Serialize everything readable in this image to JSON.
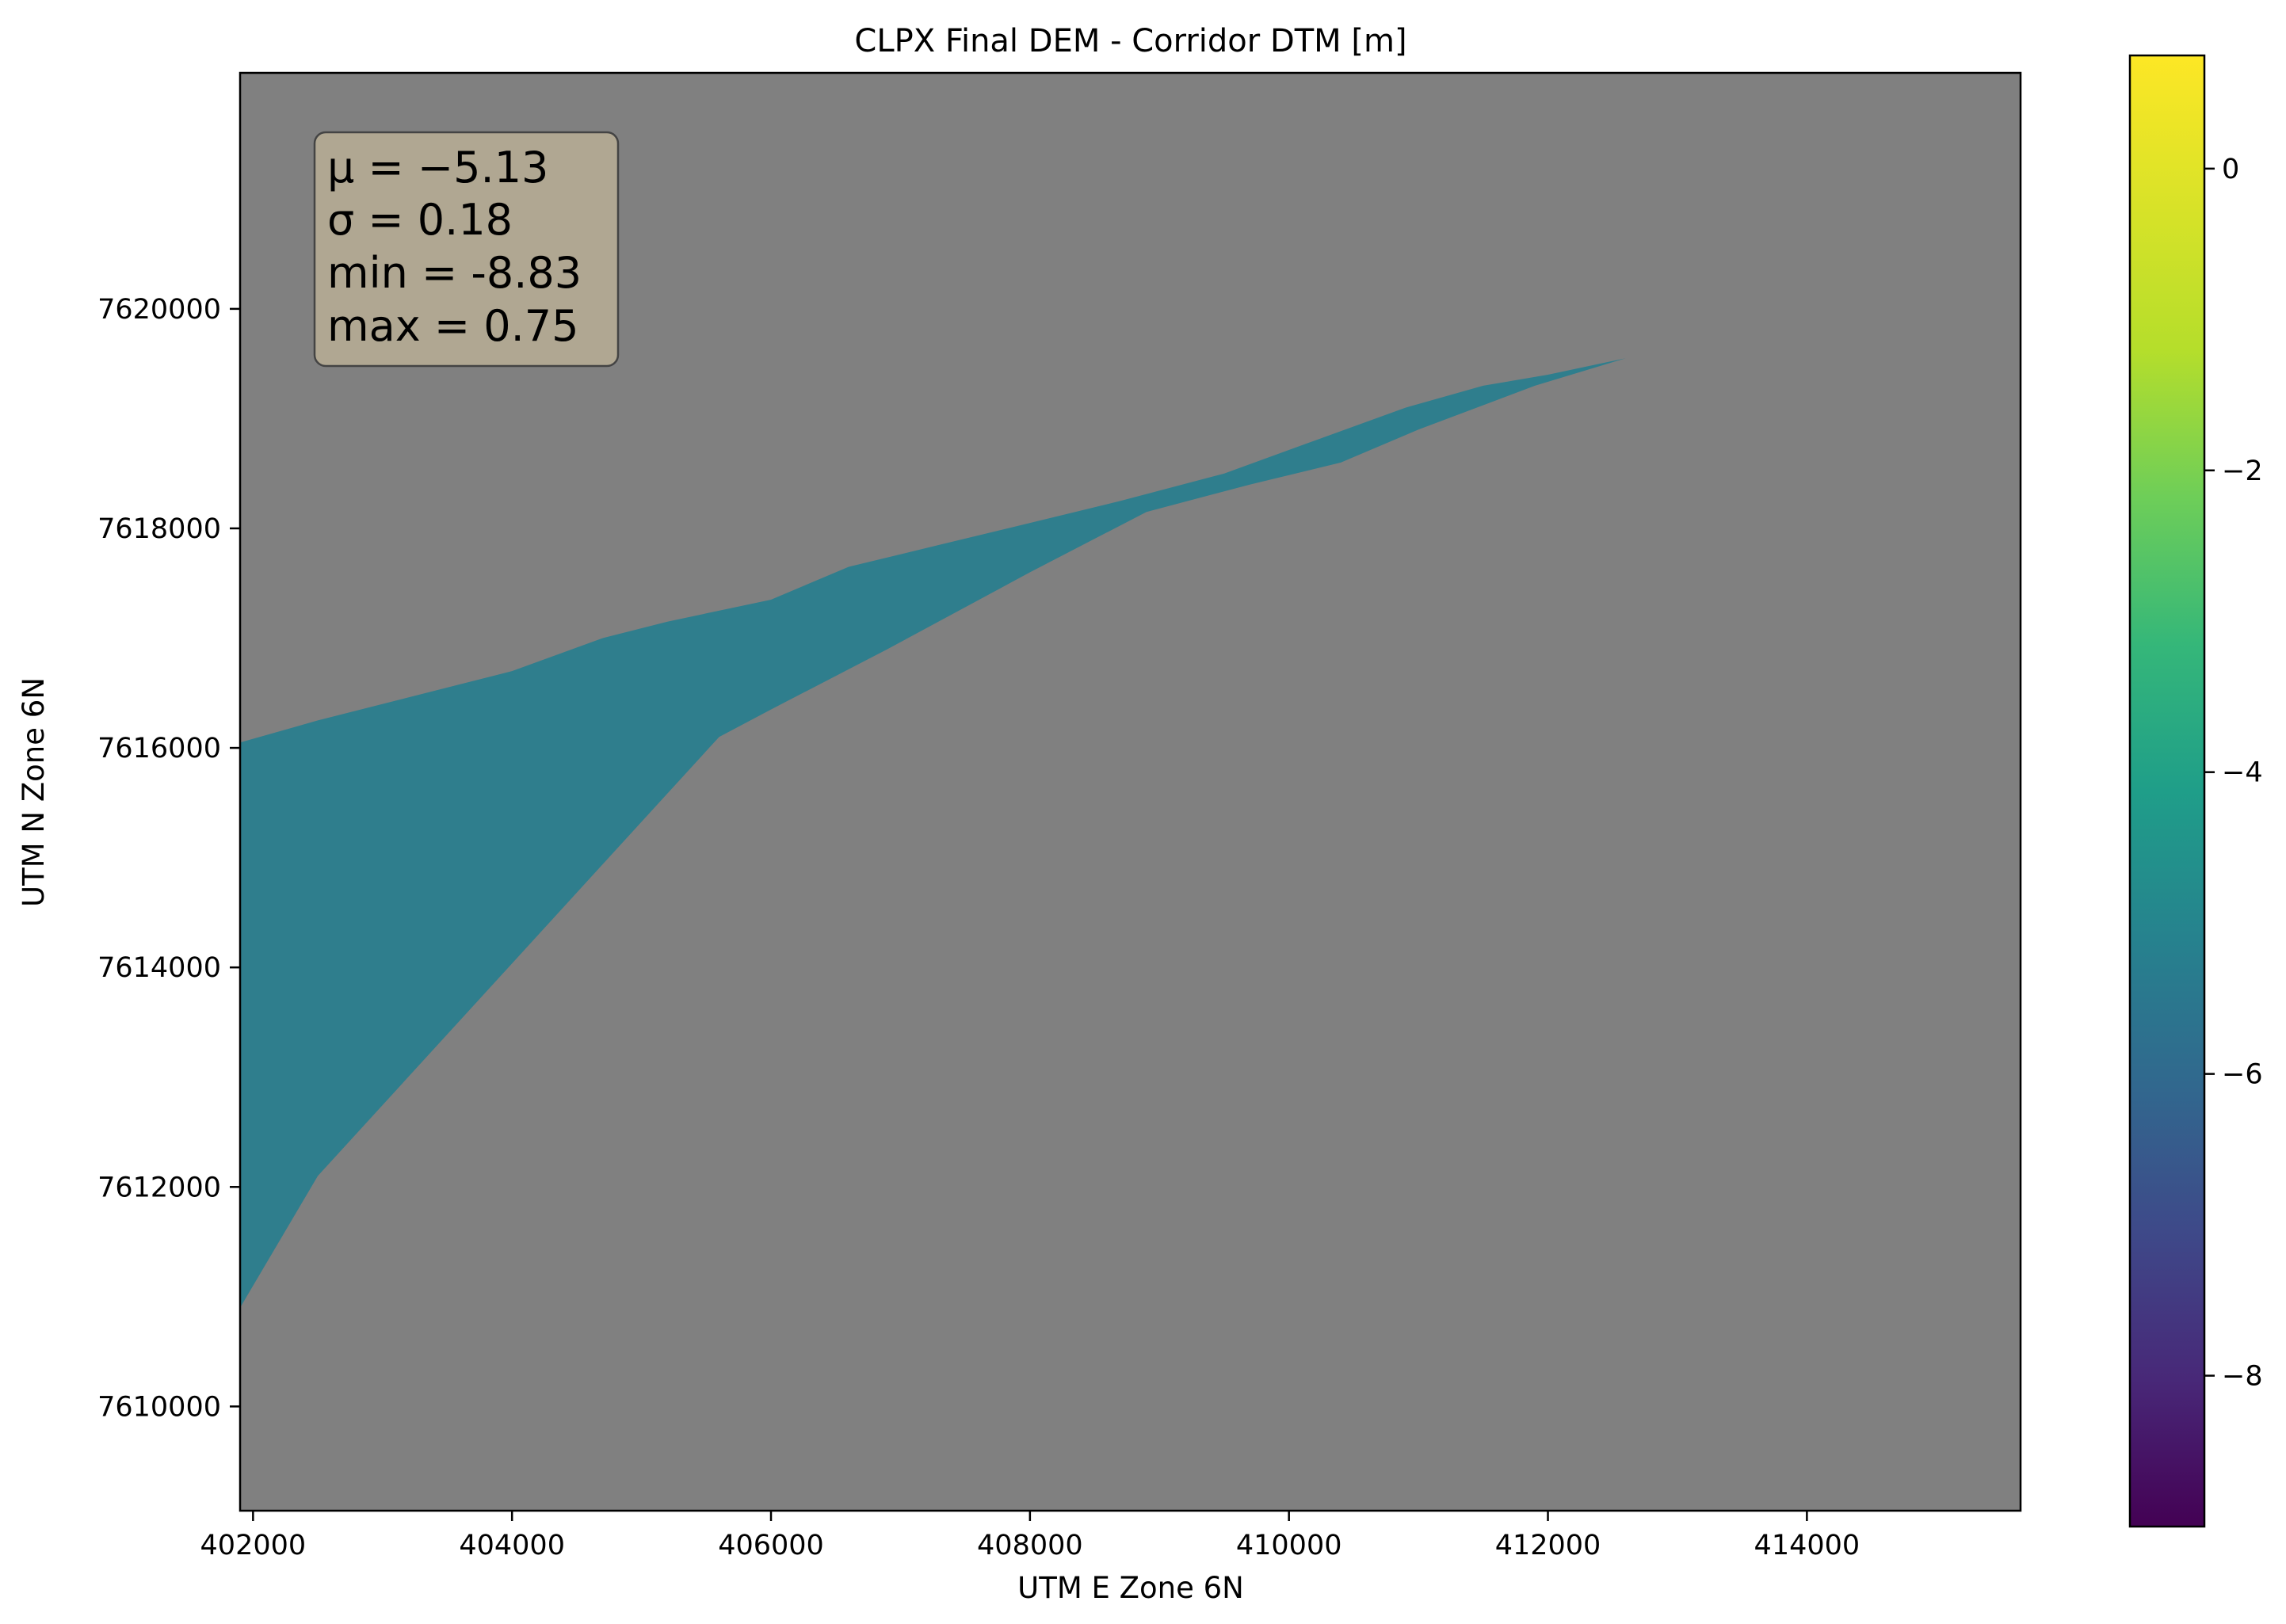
{
  "chart_data": {
    "type": "heatmap",
    "title": "CLPX Final DEM - Corridor DTM [m]",
    "xlabel": "UTM E Zone 6N",
    "ylabel": "UTM N Zone 6N",
    "xlim": [
      401900,
      415650
    ],
    "ylim": [
      7609050,
      7622150
    ],
    "xticks": [
      402000,
      404000,
      406000,
      408000,
      410000,
      412000,
      414000
    ],
    "xtick_labels": [
      "402000",
      "404000",
      "406000",
      "408000",
      "410000",
      "412000",
      "414000"
    ],
    "yticks": [
      7610000,
      7612000,
      7614000,
      7616000,
      7618000,
      7620000
    ],
    "ytick_labels": [
      "7610000",
      "7612000",
      "7614000",
      "7616000",
      "7618000",
      "7620000"
    ],
    "background_color": "#808080",
    "colormap": "viridis",
    "colorbar": {
      "range": [
        -9.0,
        0.75
      ],
      "ticks": [
        0,
        -2,
        -4,
        -6,
        -8
      ],
      "tick_labels": [
        "0",
        "−2",
        "−4",
        "−6",
        "−8"
      ]
    },
    "stats_box": {
      "lines": [
        "μ = −5.13",
        "σ = 0.18",
        "min = -8.83",
        "max = 0.75"
      ],
      "mean": -5.13,
      "std": 0.18,
      "min": -8.83,
      "max": 0.75,
      "background_color": "#b5ab94"
    },
    "surface_color": "#2f7e8d",
    "corridor_polygon": [
      [
        401900,
        7616050
      ],
      [
        402500,
        7616250
      ],
      [
        403500,
        7616550
      ],
      [
        404000,
        7616700
      ],
      [
        404700,
        7617000
      ],
      [
        405200,
        7617150
      ],
      [
        406000,
        7617350
      ],
      [
        406600,
        7617650
      ],
      [
        407300,
        7617850
      ],
      [
        408000,
        7618050
      ],
      [
        408700,
        7618250
      ],
      [
        409500,
        7618500
      ],
      [
        410200,
        7618800
      ],
      [
        410900,
        7619100
      ],
      [
        411500,
        7619300
      ],
      [
        412000,
        7619400
      ],
      [
        412600,
        7619550
      ],
      [
        411900,
        7619300
      ],
      [
        411000,
        7618900
      ],
      [
        410400,
        7618600
      ],
      [
        409700,
        7618400
      ],
      [
        408900,
        7618150
      ],
      [
        408000,
        7617600
      ],
      [
        406900,
        7616900
      ],
      [
        406000,
        7616350
      ],
      [
        405600,
        7616100
      ],
      [
        402500,
        7612100
      ],
      [
        401900,
        7610900
      ]
    ]
  }
}
